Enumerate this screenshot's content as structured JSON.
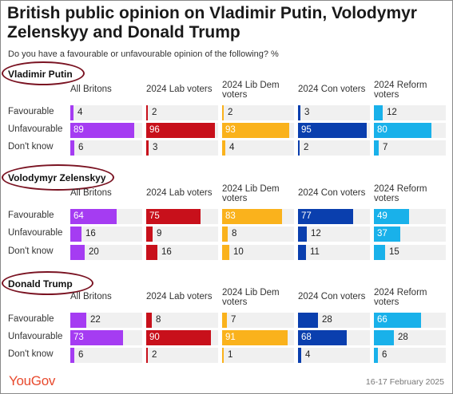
{
  "title": "British public opinion on Vladimir Putin, Volodymyr Zelenskyy and Donald Trump",
  "subtitle": "Do you have a favourable or unfavourable opinion of the following? %",
  "brand": "YouGov",
  "date": "16-17 February 2025",
  "colors": {
    "All Britons": "#a53cf2",
    "2024 Lab voters": "#c8101b",
    "2024 Lib Dem voters": "#fab21c",
    "2024 Con voters": "#0a3fae",
    "2024 Reform voters": "#19b1ea",
    "track": "#f0f0f0",
    "highlight_ellipse": "#7a1322"
  },
  "chart_data": [
    {
      "type": "bar",
      "title": "Vladimir Putin",
      "groups": [
        "All Britons",
        "2024 Lab voters",
        "2024 Lib Dem voters",
        "2024 Con voters",
        "2024 Reform voters"
      ],
      "categories": [
        "Favourable",
        "Unfavourable",
        "Don't know"
      ],
      "series": [
        {
          "name": "All Britons",
          "values": [
            4,
            89,
            6
          ]
        },
        {
          "name": "2024 Lab voters",
          "values": [
            2,
            96,
            3
          ]
        },
        {
          "name": "2024 Lib Dem voters",
          "values": [
            2,
            93,
            4
          ]
        },
        {
          "name": "2024 Con voters",
          "values": [
            3,
            95,
            2
          ]
        },
        {
          "name": "2024 Reform voters",
          "values": [
            12,
            80,
            7
          ]
        }
      ],
      "ylim": [
        0,
        100
      ]
    },
    {
      "type": "bar",
      "title": "Volodymyr Zelenskyy",
      "groups": [
        "All Britons",
        "2024 Lab voters",
        "2024 Lib Dem voters",
        "2024 Con voters",
        "2024 Reform voters"
      ],
      "categories": [
        "Favourable",
        "Unfavourable",
        "Don't know"
      ],
      "series": [
        {
          "name": "All Britons",
          "values": [
            64,
            16,
            20
          ]
        },
        {
          "name": "2024 Lab voters",
          "values": [
            75,
            9,
            16
          ]
        },
        {
          "name": "2024 Lib Dem voters",
          "values": [
            83,
            8,
            10
          ]
        },
        {
          "name": "2024 Con voters",
          "values": [
            77,
            12,
            11
          ]
        },
        {
          "name": "2024 Reform voters",
          "values": [
            49,
            37,
            15
          ]
        }
      ],
      "ylim": [
        0,
        100
      ]
    },
    {
      "type": "bar",
      "title": "Donald Trump",
      "groups": [
        "All Britons",
        "2024 Lab voters",
        "2024 Lib Dem voters",
        "2024 Con voters",
        "2024 Reform voters"
      ],
      "categories": [
        "Favourable",
        "Unfavourable",
        "Don't know"
      ],
      "series": [
        {
          "name": "All Britons",
          "values": [
            22,
            73,
            6
          ]
        },
        {
          "name": "2024 Lab voters",
          "values": [
            8,
            90,
            2
          ]
        },
        {
          "name": "2024 Lib Dem voters",
          "values": [
            7,
            91,
            1
          ]
        },
        {
          "name": "2024 Con voters",
          "values": [
            28,
            68,
            4
          ]
        },
        {
          "name": "2024 Reform voters",
          "values": [
            66,
            28,
            6
          ]
        }
      ],
      "ylim": [
        0,
        100
      ]
    }
  ]
}
